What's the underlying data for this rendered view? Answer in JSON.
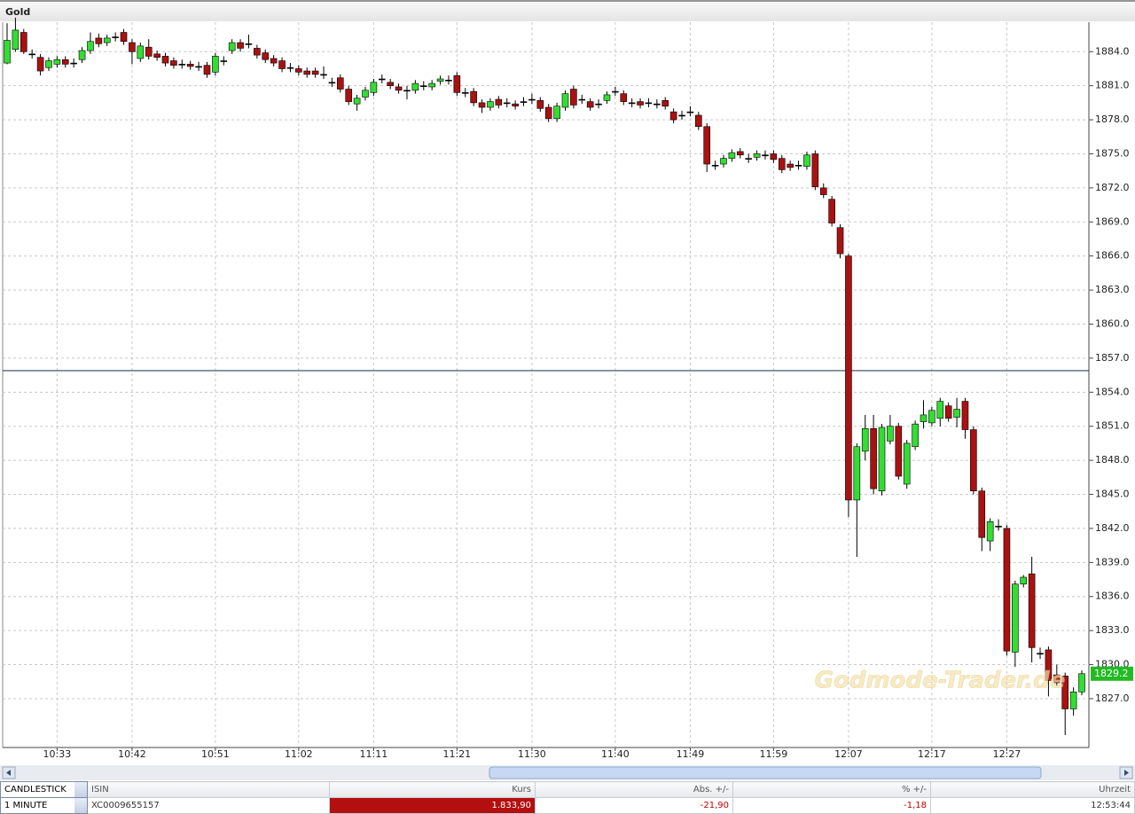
{
  "chart_data": {
    "type": "candlestick",
    "title": "Gold",
    "categories": [
      null,
      null,
      null,
      null,
      null,
      null,
      "10:33",
      null,
      null,
      null,
      null,
      null,
      null,
      null,
      null,
      "10:42",
      null,
      null,
      null,
      null,
      null,
      null,
      null,
      null,
      null,
      "10:51",
      null,
      null,
      null,
      null,
      null,
      null,
      null,
      null,
      null,
      "11:02",
      null,
      null,
      null,
      null,
      null,
      null,
      null,
      null,
      "11:11",
      null,
      null,
      null,
      null,
      null,
      null,
      null,
      null,
      null,
      "11:21",
      null,
      null,
      null,
      null,
      null,
      null,
      null,
      null,
      "11:30",
      null,
      null,
      null,
      null,
      null,
      null,
      null,
      null,
      null,
      "11:40",
      null,
      null,
      null,
      null,
      null,
      null,
      null,
      null,
      "11:49",
      null,
      null,
      null,
      null,
      null,
      null,
      null,
      null,
      null,
      "11:59",
      null,
      null,
      null,
      null,
      null,
      null,
      null,
      null,
      "12:07",
      null,
      null,
      null,
      null,
      null,
      null,
      null,
      null,
      null,
      "12:17",
      null,
      null,
      null,
      null,
      null,
      null,
      null,
      null,
      "12:27",
      null,
      null,
      null,
      null,
      null,
      null,
      null,
      null,
      null
    ],
    "values": [
      [
        1883.0,
        1886.5,
        1882.9,
        1885.0
      ],
      [
        1884.2,
        1887.0,
        1884.0,
        1885.9
      ],
      [
        1885.7,
        1886.0,
        1883.8,
        1884.0
      ],
      [
        1883.8,
        1884.2,
        1883.4,
        1883.8
      ],
      [
        1883.5,
        1883.8,
        1881.9,
        1882.3
      ],
      [
        1882.6,
        1883.5,
        1882.3,
        1883.2
      ],
      [
        1882.9,
        1883.6,
        1882.6,
        1883.3
      ],
      [
        1883.3,
        1883.6,
        1882.6,
        1882.9
      ],
      [
        1883.0,
        1883.4,
        1882.6,
        1883.0
      ],
      [
        1883.3,
        1884.4,
        1883.0,
        1884.1
      ],
      [
        1884.1,
        1885.7,
        1883.8,
        1884.9
      ],
      [
        1885.2,
        1885.6,
        1884.4,
        1884.7
      ],
      [
        1884.8,
        1885.5,
        1884.5,
        1885.2
      ],
      [
        1885.3,
        1885.7,
        1884.9,
        1885.3
      ],
      [
        1885.7,
        1886.0,
        1884.6,
        1884.9
      ],
      [
        1884.8,
        1885.1,
        1882.9,
        1884.0
      ],
      [
        1883.4,
        1884.8,
        1883.1,
        1884.5
      ],
      [
        1884.4,
        1885.1,
        1883.3,
        1883.6
      ],
      [
        1883.8,
        1884.1,
        1883.2,
        1883.5
      ],
      [
        1883.6,
        1883.9,
        1882.7,
        1883.0
      ],
      [
        1883.2,
        1883.5,
        1882.5,
        1882.8
      ],
      [
        1882.9,
        1883.3,
        1882.5,
        1882.9
      ],
      [
        1882.9,
        1883.2,
        1882.4,
        1882.7
      ],
      [
        1882.7,
        1883.1,
        1882.3,
        1882.7
      ],
      [
        1882.8,
        1883.1,
        1881.7,
        1882.0
      ],
      [
        1882.2,
        1883.9,
        1881.9,
        1883.6
      ],
      [
        1883.2,
        1883.6,
        1882.8,
        1883.2
      ],
      [
        1884.1,
        1885.1,
        1883.8,
        1884.8
      ],
      [
        1884.8,
        1885.1,
        1884.0,
        1884.3
      ],
      [
        1884.7,
        1885.5,
        1884.3,
        1884.7
      ],
      [
        1884.3,
        1884.6,
        1883.4,
        1883.7
      ],
      [
        1883.9,
        1884.2,
        1883.0,
        1883.3
      ],
      [
        1883.4,
        1883.7,
        1882.7,
        1883.0
      ],
      [
        1883.2,
        1883.5,
        1882.2,
        1882.5
      ],
      [
        1882.6,
        1883.0,
        1882.2,
        1882.6
      ],
      [
        1882.5,
        1882.8,
        1881.9,
        1882.2
      ],
      [
        1882.3,
        1882.6,
        1881.7,
        1882.0
      ],
      [
        1882.3,
        1882.6,
        1881.7,
        1882.0
      ],
      [
        1882.0,
        1882.7,
        1881.6,
        1882.0
      ],
      [
        1881.3,
        1881.7,
        1880.9,
        1881.3
      ],
      [
        1881.7,
        1882.0,
        1880.4,
        1880.7
      ],
      [
        1880.7,
        1881.0,
        1879.3,
        1879.6
      ],
      [
        1879.4,
        1880.2,
        1878.8,
        1879.9
      ],
      [
        1880.0,
        1880.9,
        1879.7,
        1880.6
      ],
      [
        1880.4,
        1881.6,
        1880.1,
        1881.3
      ],
      [
        1881.6,
        1882.0,
        1881.2,
        1881.6
      ],
      [
        1881.3,
        1881.6,
        1880.7,
        1881.0
      ],
      [
        1880.9,
        1881.2,
        1880.3,
        1880.6
      ],
      [
        1880.6,
        1881.0,
        1879.8,
        1880.6
      ],
      [
        1880.6,
        1881.5,
        1880.3,
        1881.2
      ],
      [
        1881.0,
        1881.4,
        1880.6,
        1881.0
      ],
      [
        1880.9,
        1881.5,
        1880.6,
        1881.2
      ],
      [
        1881.4,
        1881.9,
        1881.1,
        1881.6
      ],
      [
        1881.5,
        1881.9,
        1881.1,
        1881.5
      ],
      [
        1881.9,
        1882.2,
        1880.1,
        1880.4
      ],
      [
        1880.4,
        1880.8,
        1880.0,
        1880.4
      ],
      [
        1880.5,
        1880.8,
        1879.2,
        1879.5
      ],
      [
        1879.5,
        1879.8,
        1878.6,
        1879.1
      ],
      [
        1879.1,
        1879.9,
        1878.8,
        1879.6
      ],
      [
        1879.8,
        1880.1,
        1879.0,
        1879.3
      ],
      [
        1879.5,
        1879.9,
        1879.1,
        1879.5
      ],
      [
        1879.4,
        1879.7,
        1878.9,
        1879.2
      ],
      [
        1879.6,
        1880.0,
        1879.2,
        1879.6
      ],
      [
        1879.8,
        1880.3,
        1879.4,
        1879.8
      ],
      [
        1879.7,
        1880.0,
        1878.7,
        1879.0
      ],
      [
        1879.1,
        1879.4,
        1877.8,
        1878.1
      ],
      [
        1878.1,
        1879.5,
        1877.8,
        1879.2
      ],
      [
        1879.1,
        1880.6,
        1878.8,
        1880.3
      ],
      [
        1880.7,
        1881.0,
        1879.0,
        1879.3
      ],
      [
        1879.8,
        1880.2,
        1879.4,
        1879.8
      ],
      [
        1879.6,
        1879.9,
        1878.8,
        1879.1
      ],
      [
        1879.4,
        1879.8,
        1879.0,
        1879.4
      ],
      [
        1879.7,
        1880.5,
        1879.4,
        1880.2
      ],
      [
        1880.5,
        1880.9,
        1880.1,
        1880.5
      ],
      [
        1880.3,
        1880.6,
        1879.3,
        1879.6
      ],
      [
        1879.5,
        1879.9,
        1879.1,
        1879.5
      ],
      [
        1879.6,
        1879.9,
        1879.0,
        1879.3
      ],
      [
        1879.5,
        1879.9,
        1879.1,
        1879.5
      ],
      [
        1879.4,
        1879.8,
        1879.0,
        1879.4
      ],
      [
        1879.7,
        1880.0,
        1878.9,
        1879.2
      ],
      [
        1878.7,
        1879.0,
        1877.7,
        1878.0
      ],
      [
        1878.4,
        1878.8,
        1878.0,
        1878.4
      ],
      [
        1878.7,
        1879.2,
        1878.3,
        1878.7
      ],
      [
        1878.4,
        1878.7,
        1877.1,
        1877.4
      ],
      [
        1877.4,
        1877.7,
        1873.4,
        1874.1
      ],
      [
        1874.0,
        1874.4,
        1873.6,
        1874.0
      ],
      [
        1874.1,
        1874.9,
        1873.8,
        1874.6
      ],
      [
        1874.6,
        1875.4,
        1874.3,
        1875.1
      ],
      [
        1875.2,
        1875.5,
        1874.6,
        1874.9
      ],
      [
        1874.6,
        1875.0,
        1874.2,
        1874.6
      ],
      [
        1874.7,
        1875.3,
        1874.4,
        1875.0
      ],
      [
        1874.9,
        1875.3,
        1874.5,
        1874.9
      ],
      [
        1875.0,
        1875.3,
        1874.2,
        1874.5
      ],
      [
        1874.6,
        1874.9,
        1873.3,
        1873.6
      ],
      [
        1874.1,
        1874.4,
        1873.5,
        1873.8
      ],
      [
        1874.0,
        1874.4,
        1873.6,
        1874.0
      ],
      [
        1873.9,
        1875.2,
        1873.6,
        1874.9
      ],
      [
        1875.0,
        1875.3,
        1871.8,
        1872.1
      ],
      [
        1872.0,
        1872.4,
        1871.1,
        1871.4
      ],
      [
        1871.0,
        1871.3,
        1868.6,
        1868.9
      ],
      [
        1868.5,
        1868.8,
        1865.8,
        1866.2
      ],
      [
        1866.0,
        1866.2,
        1843.0,
        1844.5
      ],
      [
        1844.5,
        1849.5,
        1839.5,
        1849.2
      ],
      [
        1848.8,
        1852.0,
        1848.0,
        1850.8
      ],
      [
        1850.8,
        1852.0,
        1845.0,
        1845.5
      ],
      [
        1845.3,
        1851.2,
        1844.9,
        1850.9
      ],
      [
        1849.7,
        1852.0,
        1849.4,
        1851.0
      ],
      [
        1851.0,
        1851.3,
        1846.3,
        1846.6
      ],
      [
        1845.9,
        1849.8,
        1845.5,
        1849.5
      ],
      [
        1849.2,
        1851.5,
        1848.9,
        1851.2
      ],
      [
        1851.4,
        1853.3,
        1850.8,
        1852.0
      ],
      [
        1851.3,
        1852.7,
        1851.0,
        1852.4
      ],
      [
        1851.7,
        1853.5,
        1851.0,
        1853.2
      ],
      [
        1852.8,
        1853.1,
        1851.4,
        1851.7
      ],
      [
        1851.8,
        1853.5,
        1850.9,
        1852.5
      ],
      [
        1853.2,
        1853.5,
        1849.9,
        1850.7
      ],
      [
        1850.7,
        1851.0,
        1845.0,
        1845.3
      ],
      [
        1845.3,
        1845.6,
        1840.0,
        1841.2
      ],
      [
        1840.9,
        1842.9,
        1840.0,
        1842.6
      ],
      [
        1842.2,
        1842.8,
        1841.8,
        1842.2
      ],
      [
        1842.0,
        1842.3,
        1830.8,
        1831.2
      ],
      [
        1831.1,
        1837.4,
        1829.8,
        1837.1
      ],
      [
        1837.1,
        1837.9,
        1836.8,
        1837.7
      ],
      [
        1838.0,
        1839.5,
        1830.2,
        1831.5
      ],
      [
        1831.0,
        1831.5,
        1830.5,
        1831.0
      ],
      [
        1831.3,
        1831.6,
        1827.2,
        1828.6
      ],
      [
        1829.1,
        1830.0,
        1828.1,
        1828.4
      ],
      [
        1829.0,
        1829.3,
        1823.8,
        1826.1
      ],
      [
        1826.1,
        1828.0,
        1825.5,
        1827.6
      ],
      [
        1827.6,
        1829.5,
        1827.3,
        1829.2
      ]
    ],
    "up_color": "#33dd33",
    "down_color": "#aa1111",
    "ylim": [
      1822.7,
      1886.6
    ],
    "yticks": [
      {
        "value": 1827,
        "label": "1827.0"
      },
      {
        "value": 1830,
        "label": "1830.0"
      },
      {
        "value": 1833,
        "label": "1833.0"
      },
      {
        "value": 1836,
        "label": "1836.0"
      },
      {
        "value": 1839,
        "label": "1839.0"
      },
      {
        "value": 1842,
        "label": "1842.0"
      },
      {
        "value": 1845,
        "label": "1845.0"
      },
      {
        "value": 1848,
        "label": "1848.0"
      },
      {
        "value": 1851,
        "label": "1851.0"
      },
      {
        "value": 1854,
        "label": "1854.0"
      },
      {
        "value": 1857,
        "label": "1857.0"
      },
      {
        "value": 1860,
        "label": "1860.0"
      },
      {
        "value": 1863,
        "label": "1863.0"
      },
      {
        "value": 1866,
        "label": "1866.0"
      },
      {
        "value": 1869,
        "label": "1869.0"
      },
      {
        "value": 1872,
        "label": "1872.0"
      },
      {
        "value": 1875,
        "label": "1875.0"
      },
      {
        "value": 1878,
        "label": "1878.0"
      },
      {
        "value": 1881,
        "label": "1881.0"
      },
      {
        "value": 1884,
        "label": "1884.0"
      }
    ],
    "hline": 1855.9,
    "grid": true,
    "watermark": "Godmode-Trader.de"
  },
  "table": {
    "headers": [
      "CANDLESTICK",
      "ISIN",
      "Kurs",
      "Abs. +/-",
      "% +/-",
      "Uhrzeit"
    ],
    "rows": [
      [
        "1 MINUTE",
        "XC0009655157",
        "1.833,90",
        "-21,90",
        "-1,18",
        "12:53:44"
      ]
    ]
  }
}
